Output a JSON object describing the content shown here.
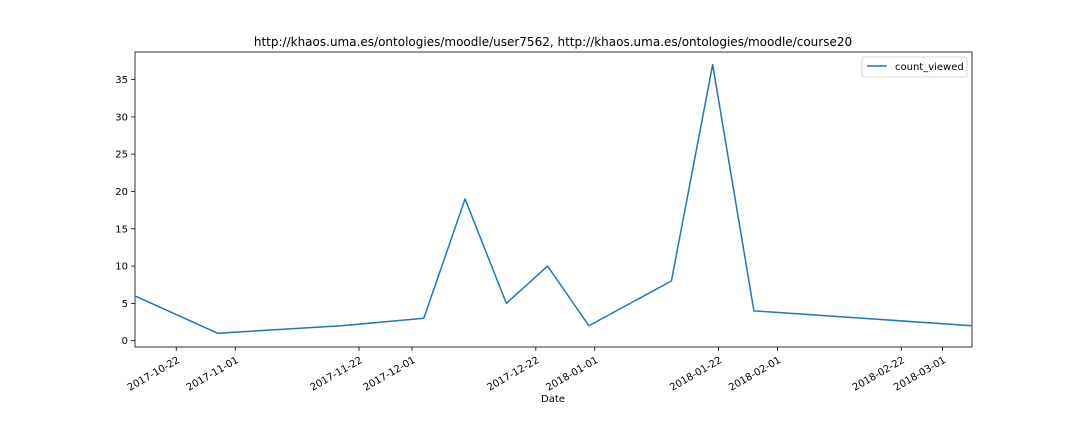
{
  "chart_data": {
    "type": "line",
    "title": "http://khaos.uma.es/ontologies/moodle/user7562, http://khaos.uma.es/ontologies/moodle/course20",
    "xlabel": "Date",
    "ylabel": "",
    "x_scale": "date",
    "xlim": [
      "2017-10-15",
      "2018-03-06"
    ],
    "ylim": [
      -0.85,
      38.7
    ],
    "x_ticks": [
      "2017-10-22",
      "2017-11-01",
      "2017-11-22",
      "2017-12-01",
      "2017-12-22",
      "2018-01-01",
      "2018-01-22",
      "2018-02-01",
      "2018-02-22",
      "2018-03-01"
    ],
    "y_ticks": [
      0,
      5,
      10,
      15,
      20,
      25,
      30,
      35
    ],
    "grid": false,
    "legend_position": "top-right",
    "series": [
      {
        "name": "count_viewed",
        "color": "#1f77b4",
        "x": [
          "2017-10-15",
          "2017-10-29",
          "2017-11-19",
          "2017-12-03",
          "2017-12-10",
          "2017-12-17",
          "2017-12-24",
          "2017-12-31",
          "2018-01-14",
          "2018-01-21",
          "2018-01-28",
          "2018-03-06"
        ],
        "y": [
          6,
          1,
          2,
          3,
          19,
          5,
          10,
          2,
          8,
          37,
          4,
          2
        ]
      }
    ]
  }
}
